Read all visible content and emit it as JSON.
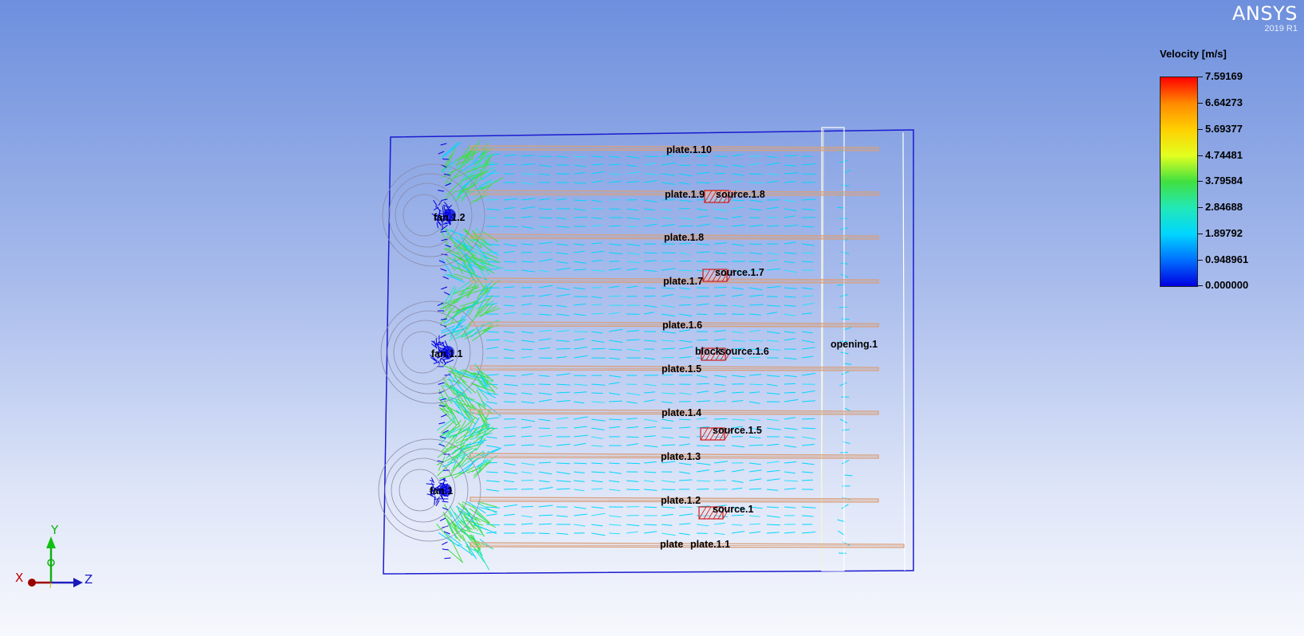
{
  "brand": {
    "name": "ANSYS",
    "version": "2019 R1"
  },
  "legend": {
    "title": "Velocity [m/s]",
    "ticks": [
      "7.59169",
      "6.64273",
      "5.69377",
      "4.74481",
      "3.79584",
      "2.84688",
      "1.89792",
      "0.948961",
      "0.000000"
    ]
  },
  "colors": {
    "low": "#0000e0",
    "mid_low": "#00d6ff",
    "mid": "#40e040",
    "mid_high": "#ffd000",
    "high": "#ff0000",
    "plate": "#d9a07c",
    "source": "#cc1a1a",
    "cabinet": "#1a1ad0"
  },
  "labels": {
    "plate_1_10": "plate.1.10",
    "plate_1_9": "plate.1.9",
    "source_1_8": "source.1.8",
    "fan_1_2": "fan.1.2",
    "plate_1_8": "plate.1.8",
    "source_1_7": "source.1.7",
    "plate_1_7": "plate.1.7",
    "plate_1_6": "plate.1.6",
    "opening_1": "opening.1",
    "block": "block",
    "source_1_6": "source.1.6",
    "fan_1_1": "fan.1.1",
    "plate_1_5": "plate.1.5",
    "plate_1_4": "plate.1.4",
    "source_1_5": "source.1.5",
    "plate_1_3": "plate.1.3",
    "fan_1": "fan.1",
    "plate_1_2": "plate.1.2",
    "source_1": "source.1",
    "plate": "plate",
    "plate_1_1": "plate.1.1"
  },
  "triad": {
    "x": "X",
    "y": "Y",
    "z": "Z"
  }
}
